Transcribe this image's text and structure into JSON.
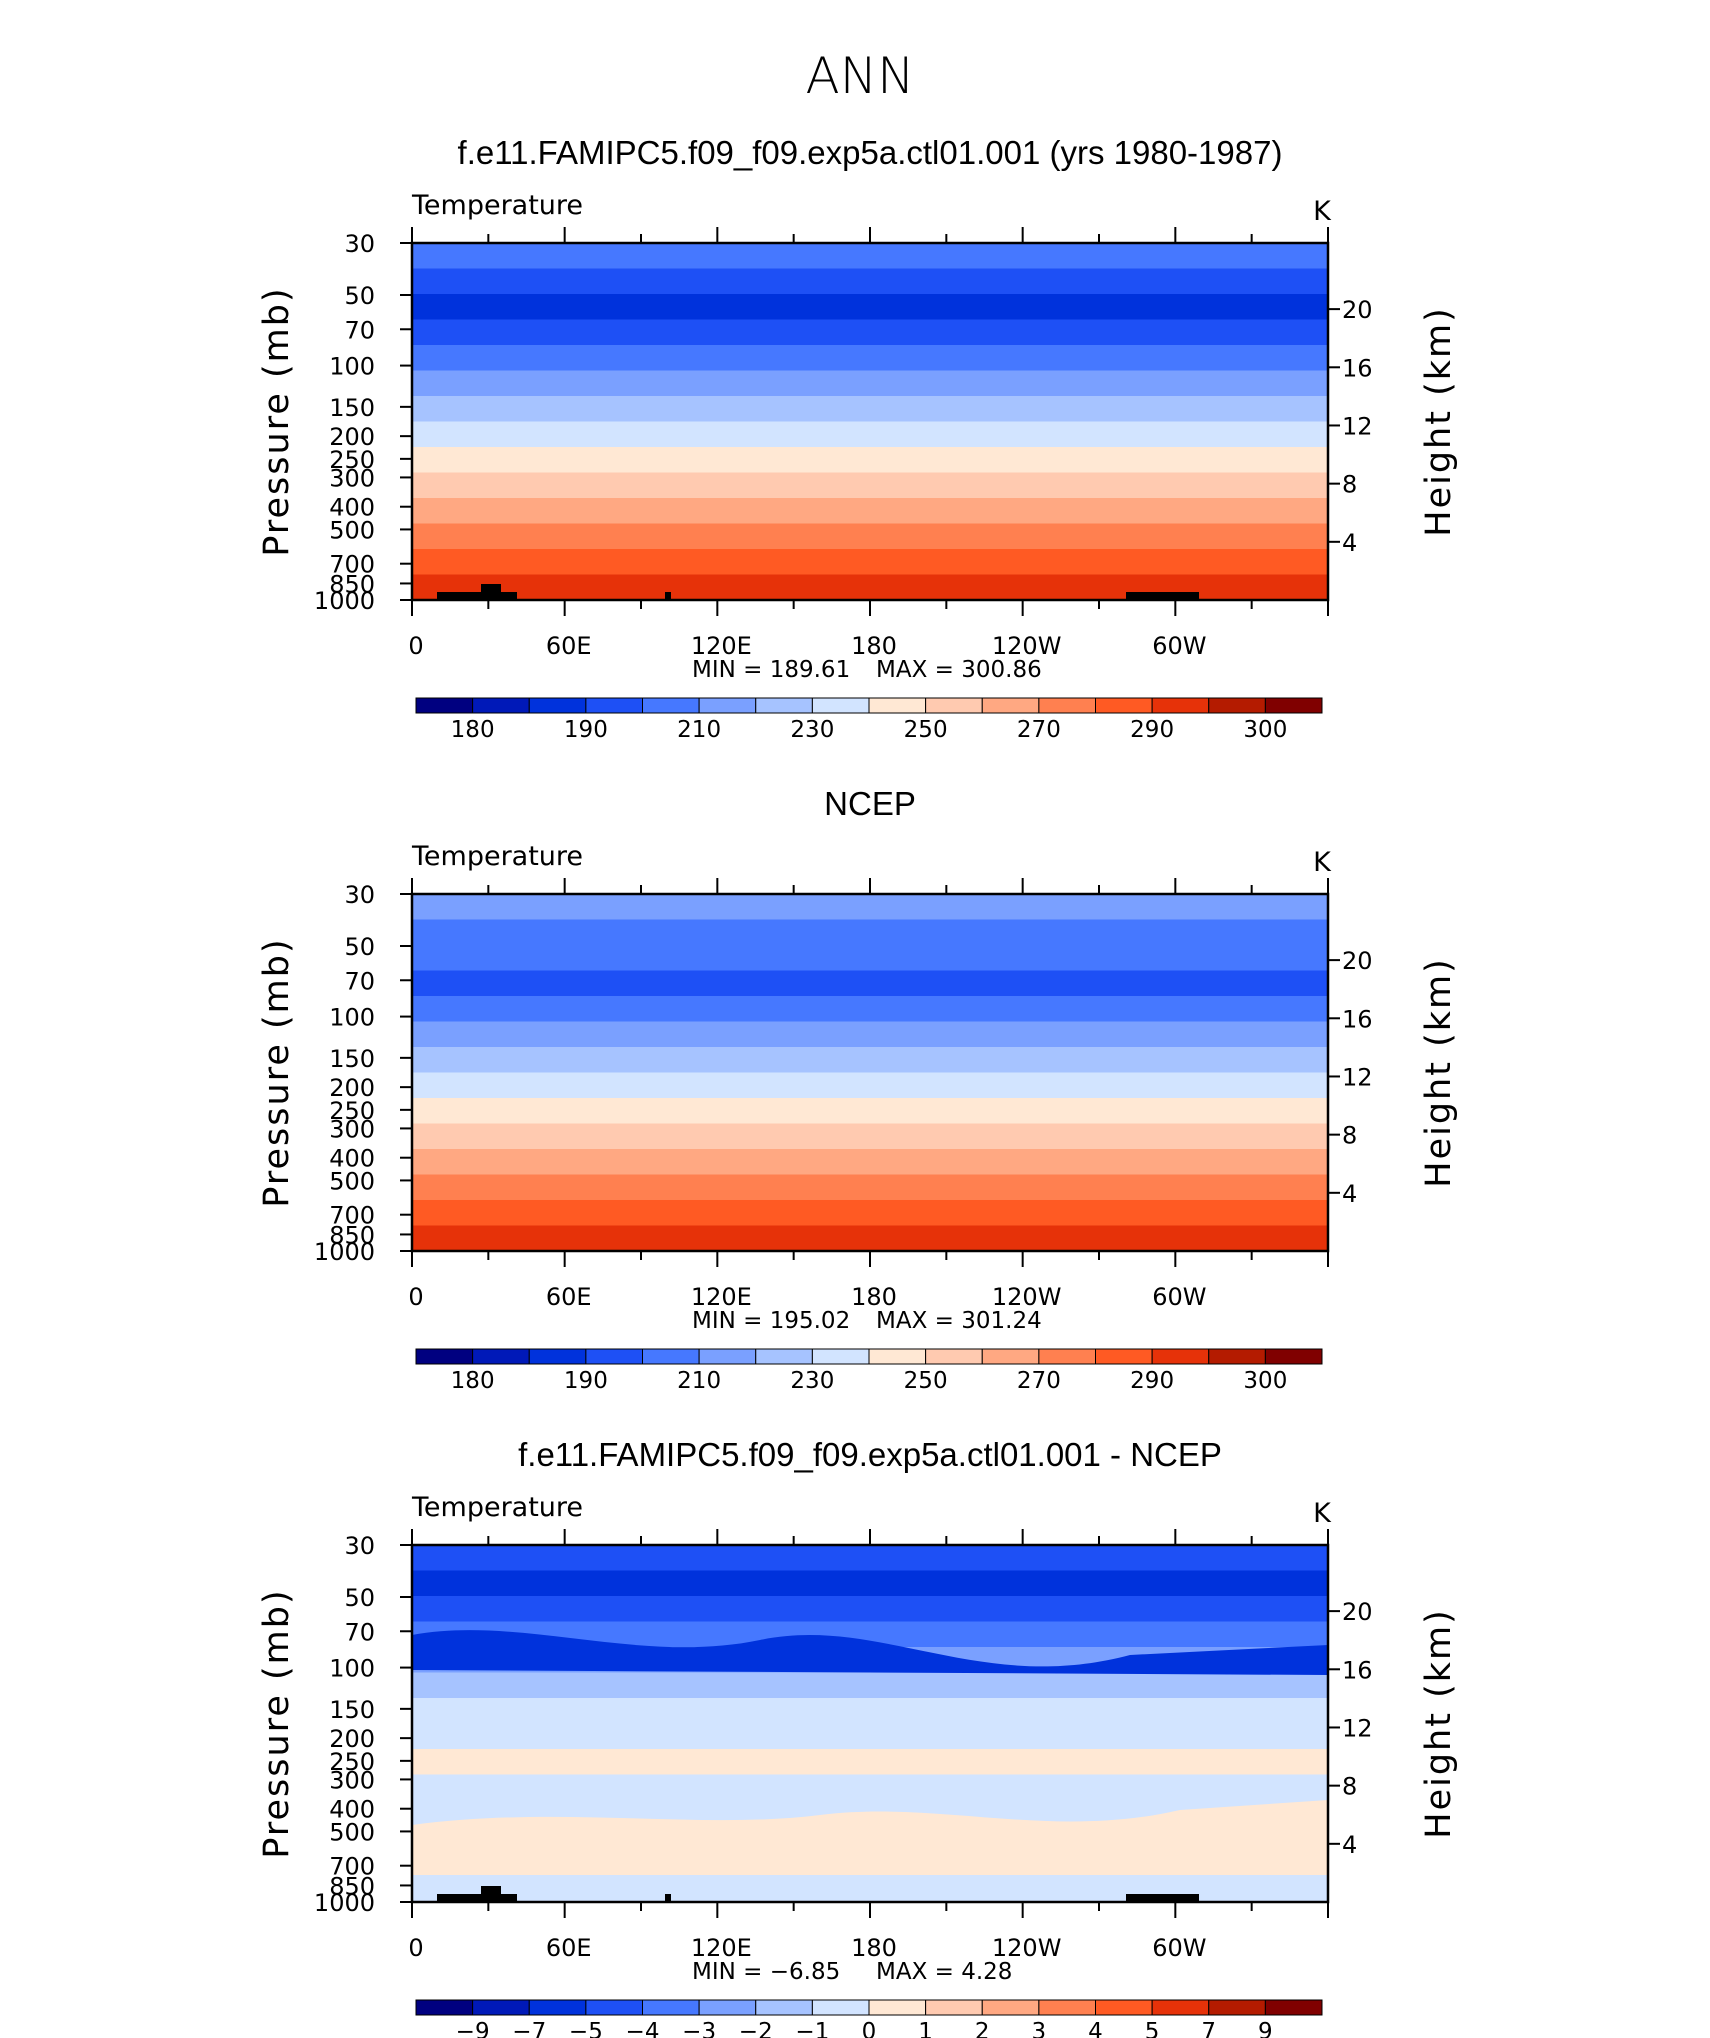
{
  "figure_title": "ANN",
  "colors": {
    "t_levels": [
      "#000080",
      "#0019b8",
      "#0032dc",
      "#1e50f5",
      "#4678ff",
      "#7aa0ff",
      "#a6c3ff",
      "#d2e4ff",
      "#ffe8d4",
      "#ffcab0",
      "#ffa882",
      "#ff8050",
      "#ff5a23",
      "#e63209",
      "#b41b00",
      "#800000"
    ],
    "d_levels": [
      "#000080",
      "#0019b8",
      "#0032dc",
      "#1e50f5",
      "#4678ff",
      "#7aa0ff",
      "#a6c3ff",
      "#d2e4ff",
      "#ffe8d4",
      "#ffcab0",
      "#ffa882",
      "#ff8050",
      "#ff5a23",
      "#e63209",
      "#b41b00",
      "#800000"
    ],
    "terrain": "#000000"
  },
  "chart_data": [
    {
      "type": "heatmap",
      "title": "f.e11.FAMIPC5.f09_f09.exp5a.ctl01.001 (yrs 1980-1987)",
      "variable": "Temperature",
      "units": "K",
      "ylabel": "Pressure (mb)",
      "y2label": "Height (km)",
      "x_ticks": [
        "0",
        "60E",
        "120E",
        "180",
        "120W",
        "60W"
      ],
      "y_ticks": [
        "30",
        "50",
        "70",
        "100",
        "150",
        "200",
        "250",
        "300",
        "400",
        "500",
        "700",
        "850",
        "1000"
      ],
      "y2_ticks": [
        "20",
        "16",
        "12",
        "8",
        "4"
      ],
      "min_label": "MIN  =  189.61",
      "max_label": "MAX  =  300.86",
      "min": 189.61,
      "max": 300.86,
      "colorbar_labels": [
        "180",
        "190",
        "210",
        "230",
        "250",
        "270",
        "290",
        "300"
      ],
      "level_colors": [
        4,
        3,
        2,
        3,
        4,
        5,
        6,
        7,
        8,
        9,
        10,
        11,
        12,
        13
      ],
      "show_terrain": true
    },
    {
      "type": "heatmap",
      "title": "NCEP",
      "variable": "Temperature",
      "units": "K",
      "ylabel": "Pressure (mb)",
      "y2label": "Height (km)",
      "x_ticks": [
        "0",
        "60E",
        "120E",
        "180",
        "120W",
        "60W"
      ],
      "y_ticks": [
        "30",
        "50",
        "70",
        "100",
        "150",
        "200",
        "250",
        "300",
        "400",
        "500",
        "700",
        "850",
        "1000"
      ],
      "y2_ticks": [
        "20",
        "16",
        "12",
        "8",
        "4"
      ],
      "min_label": "MIN  =  195.02",
      "max_label": "MAX  =  301.24",
      "min": 195.02,
      "max": 301.24,
      "colorbar_labels": [
        "180",
        "190",
        "210",
        "230",
        "250",
        "270",
        "290",
        "300"
      ],
      "level_colors": [
        5,
        4,
        4,
        3,
        4,
        5,
        6,
        7,
        8,
        9,
        10,
        11,
        12,
        13
      ],
      "show_terrain": false
    },
    {
      "type": "heatmap",
      "title": "f.e11.FAMIPC5.f09_f09.exp5a.ctl01.001 - NCEP",
      "variable": "Temperature",
      "units": "K",
      "ylabel": "Pressure (mb)",
      "y2label": "Height (km)",
      "x_ticks": [
        "0",
        "60E",
        "120E",
        "180",
        "120W",
        "60W"
      ],
      "y_ticks": [
        "30",
        "50",
        "70",
        "100",
        "150",
        "200",
        "250",
        "300",
        "400",
        "500",
        "700",
        "850",
        "1000"
      ],
      "y2_ticks": [
        "20",
        "16",
        "12",
        "8",
        "4"
      ],
      "min_label": "MIN  =    −6.85",
      "max_label": "MAX  =     4.28",
      "min": -6.85,
      "max": 4.28,
      "colorbar_labels": [
        "−9",
        "−7",
        "−5",
        "−4",
        "−3",
        "−2",
        "−1",
        "0",
        "1",
        "2",
        "3",
        "4",
        "5",
        "7",
        "9"
      ],
      "level_colors": [
        3,
        2,
        3,
        4,
        5,
        6,
        7,
        7,
        8,
        7,
        7,
        8,
        7,
        7
      ],
      "show_terrain": true
    }
  ]
}
